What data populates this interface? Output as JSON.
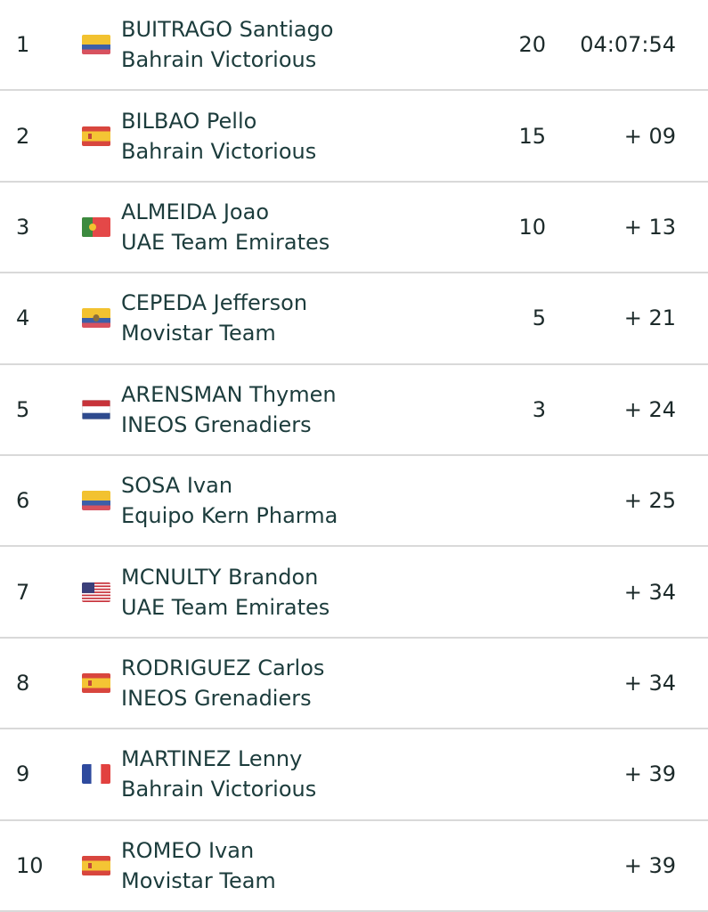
{
  "results": [
    {
      "rank": "1",
      "flag": "colombia-flag-icon",
      "rider": "BUITRAGO Santiago",
      "team": "Bahrain Victorious",
      "points": "20",
      "time": "04:07:54"
    },
    {
      "rank": "2",
      "flag": "spain-flag-icon",
      "rider": "BILBAO Pello",
      "team": "Bahrain Victorious",
      "points": "15",
      "time": "+ 09"
    },
    {
      "rank": "3",
      "flag": "portugal-flag-icon",
      "rider": "ALMEIDA Joao",
      "team": "UAE Team Emirates",
      "points": "10",
      "time": "+ 13"
    },
    {
      "rank": "4",
      "flag": "ecuador-flag-icon",
      "rider": "CEPEDA Jefferson",
      "team": "Movistar Team",
      "points": "5",
      "time": "+ 21"
    },
    {
      "rank": "5",
      "flag": "netherlands-flag-icon",
      "rider": "ARENSMAN Thymen",
      "team": "INEOS Grenadiers",
      "points": "3",
      "time": "+ 24"
    },
    {
      "rank": "6",
      "flag": "colombia-flag-icon",
      "rider": "SOSA Ivan",
      "team": "Equipo Kern Pharma",
      "points": "",
      "time": "+ 25"
    },
    {
      "rank": "7",
      "flag": "usa-flag-icon",
      "rider": "MCNULTY Brandon",
      "team": "UAE Team Emirates",
      "points": "",
      "time": "+ 34"
    },
    {
      "rank": "8",
      "flag": "spain-flag-icon",
      "rider": "RODRIGUEZ Carlos",
      "team": "INEOS Grenadiers",
      "points": "",
      "time": "+ 34"
    },
    {
      "rank": "9",
      "flag": "france-flag-icon",
      "rider": "MARTINEZ Lenny",
      "team": "Bahrain Victorious",
      "points": "",
      "time": "+ 39"
    },
    {
      "rank": "10",
      "flag": "spain-flag-icon",
      "rider": "ROMEO Ivan",
      "team": "Movistar Team",
      "points": "",
      "time": "+ 39"
    }
  ],
  "colors": {
    "text": "#1c3c3c",
    "divider": "#d9d9d9",
    "background": "#ffffff"
  }
}
